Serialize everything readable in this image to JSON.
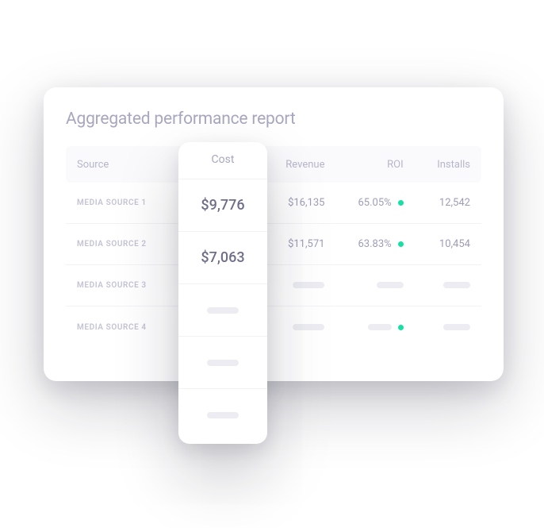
{
  "report": {
    "title": "Aggregated performance report",
    "columns": {
      "source": "Source",
      "cost": "Cost",
      "revenue": "Revenue",
      "roi": "ROI",
      "installs": "Installs"
    },
    "rows": [
      {
        "source": "MEDIA SOURCE 1",
        "cost": "$9,776",
        "revenue": "$16,135",
        "roi": "65.05%",
        "roi_dot": "#18e0a5",
        "installs": "12,542",
        "loaded": true
      },
      {
        "source": "MEDIA SOURCE 2",
        "cost": "$7,063",
        "revenue": "$11,571",
        "roi": "63.83%",
        "roi_dot": "#18e0a5",
        "installs": "10,454",
        "loaded": true
      },
      {
        "source": "MEDIA SOURCE 3",
        "cost": "",
        "revenue": "",
        "roi": "",
        "roi_dot": "",
        "installs": "",
        "loaded": false
      },
      {
        "source": "MEDIA SOURCE 4",
        "cost": "",
        "revenue": "",
        "roi": "",
        "roi_dot": "#18e0a5",
        "installs": "",
        "loaded": false
      }
    ]
  },
  "colors": {
    "title": "#a7a7c0",
    "header_text": "#b6b6cb",
    "cell_text": "#9d9db8",
    "source_text": "#c3c3d4",
    "cost_text": "#6e6e8a",
    "skeleton": "#ececf2",
    "positive_dot": "#18e0a5",
    "card_bg": "#ffffff",
    "header_bg": "#fafafc",
    "divider": "#f2f2f6"
  },
  "popover": {
    "title": "Cost",
    "values": [
      "$9,776",
      "$7,063",
      "",
      "",
      ""
    ]
  }
}
